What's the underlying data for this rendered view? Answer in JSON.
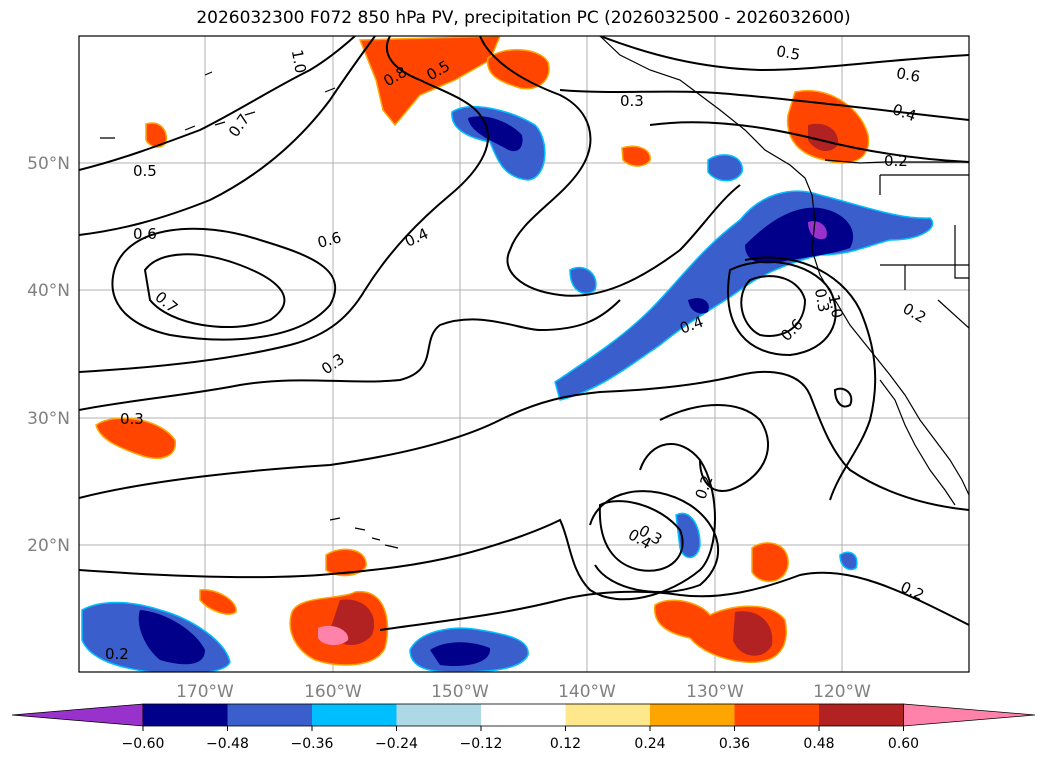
{
  "title": "2026032300 F072 850 hPa PV, precipitation PC (2026032500 - 2026032600)",
  "lat_labels": [
    "50°N",
    "40°N",
    "30°N",
    "20°N"
  ],
  "lon_labels": [
    "170°W",
    "160°W",
    "150°W",
    "140°W",
    "130°W",
    "120°W"
  ],
  "contour_labels": [
    "0.5",
    "0.6",
    "0.7",
    "0.3",
    "0.3",
    "1.0",
    "0.8",
    "0.5",
    "0.7",
    "0.6",
    "0.4",
    "0.3",
    "0.5",
    "0.6",
    "0.4",
    "0.2",
    "0.4",
    "0.3",
    "0.6",
    "1.0",
    "0.2",
    "0.2",
    "0.3",
    "0.4",
    "0.2",
    "0.2"
  ],
  "colorbar": {
    "ticks": [
      "−0.60",
      "−0.48",
      "−0.36",
      "−0.24",
      "−0.12",
      "0.12",
      "0.24",
      "0.36",
      "0.48",
      "0.60"
    ],
    "colors": [
      "#9932cc",
      "#00008b",
      "#3a5fcd",
      "#00bfff",
      "#add8e6",
      "#ffffff",
      "#ffe88c",
      "#ffa500",
      "#ff4500",
      "#b22222",
      "#ff82ab"
    ]
  }
}
